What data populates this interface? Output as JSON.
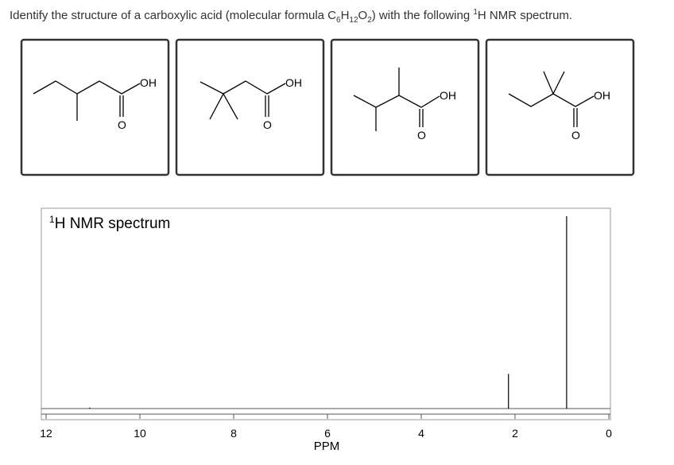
{
  "question": {
    "parts": [
      "Identify the structure of a carboxylic acid (molecular formula C",
      "6",
      "H",
      "12",
      "O",
      "2",
      ") with the following ",
      "1",
      "H NMR spectrum."
    ]
  },
  "options": [
    {
      "oh": "OH",
      "o": "O"
    },
    {
      "oh": "OH",
      "o": "O"
    },
    {
      "oh": "OH",
      "o": "O"
    },
    {
      "oh": "OH",
      "o": "O"
    }
  ],
  "chart_data": {
    "type": "stick",
    "title_sup": "1",
    "title": "H NMR spectrum",
    "xlabel": "PPM",
    "xlim": [
      12,
      0
    ],
    "xticks": [
      12,
      10,
      8,
      6,
      4,
      2,
      0
    ],
    "ylim": [
      0,
      100
    ],
    "x": [
      11.07,
      2.14,
      0.9
    ],
    "values": [
      0.5,
      18,
      100
    ],
    "color": "#000000"
  }
}
